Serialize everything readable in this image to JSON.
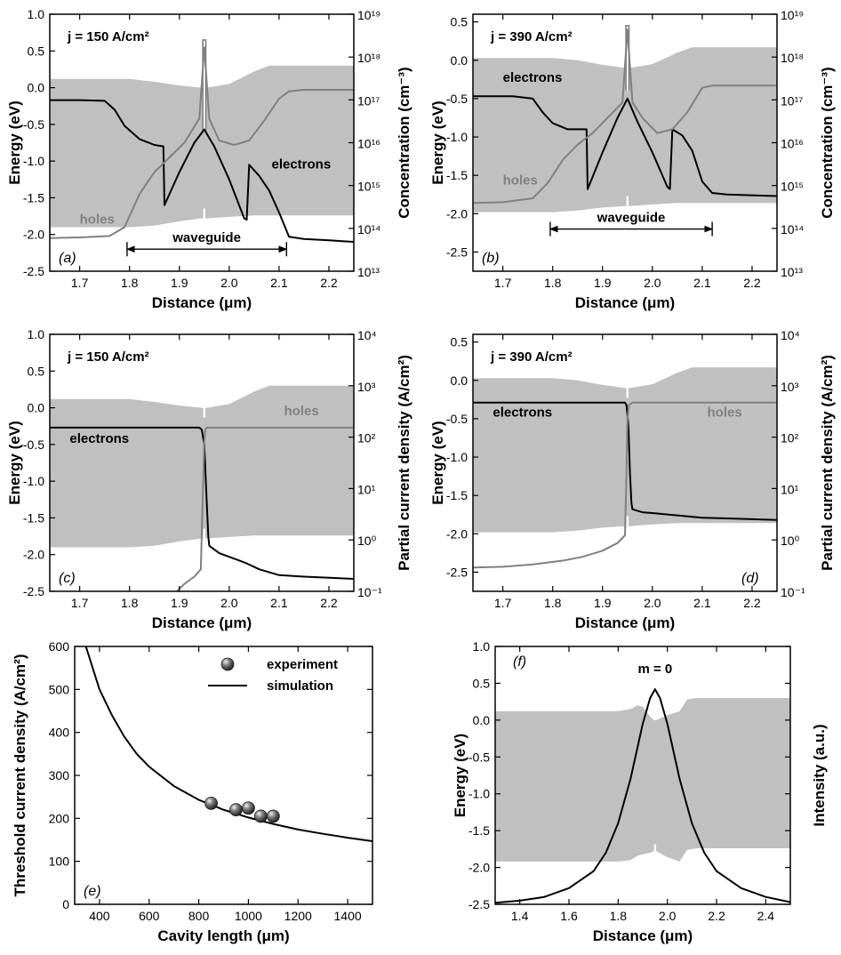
{
  "colors": {
    "band": "#c0c0c0",
    "electrons": "#000000",
    "holes": "#808080",
    "marker": "#5a5a5a"
  },
  "chart_data": [
    {
      "id": "a",
      "type": "line",
      "panel_label": "(a)",
      "annotation": "j = 150 A/cm²",
      "xlabel": "Distance (μm)",
      "ylabel": "Energy (eV)",
      "y2label": "Concentration (cm⁻³)",
      "xlim": [
        1.64,
        2.25
      ],
      "ylim": [
        -2.5,
        1.0
      ],
      "xticks": [
        "1.7",
        "1.8",
        "1.9",
        "2.0",
        "2.1",
        "2.2"
      ],
      "yticks": [
        "-2.5",
        "-2.0",
        "-1.5",
        "-1.0",
        "-0.5",
        "0.0",
        "0.5",
        "1.0"
      ],
      "y2log": true,
      "y2lim": [
        10000000000000.0,
        1e+19
      ],
      "y2ticks": [
        "10¹³",
        "10¹⁴",
        "10¹⁵",
        "10¹⁶",
        "10¹⁷",
        "10¹⁸",
        "10¹⁹"
      ],
      "labels": [
        {
          "text": "electrons",
          "x": 2.085,
          "y": -1.1
        },
        {
          "text": "holes",
          "x": 1.7,
          "y": -1.85,
          "color": "holes"
        }
      ],
      "waveguide": {
        "text": "waveguide",
        "from": 1.795,
        "to": 2.115,
        "y": -2.2
      },
      "band": {
        "x": [
          1.64,
          1.8,
          1.85,
          1.9,
          1.945,
          1.955,
          2.0,
          2.05,
          2.08,
          2.25
        ],
        "upper": [
          0.12,
          0.12,
          0.08,
          0.03,
          0.0,
          0.0,
          0.05,
          0.22,
          0.3,
          0.3
        ],
        "lower": [
          -1.9,
          -1.9,
          -1.88,
          -1.82,
          -1.78,
          -1.78,
          -1.76,
          -1.74,
          -1.74,
          -1.74
        ]
      },
      "barrier": {
        "x": [
          1.947,
          1.953
        ],
        "top": 0.65,
        "bottom": -0.6
      },
      "series": [
        {
          "name": "electrons",
          "color": "electrons",
          "x": [
            1.64,
            1.7,
            1.75,
            1.77,
            1.79,
            1.82,
            1.85,
            1.868,
            1.87,
            1.9,
            1.93,
            1.95,
            1.97,
            2.0,
            2.03,
            2.035,
            2.04,
            2.06,
            2.08,
            2.1,
            2.12,
            2.15,
            2.2,
            2.25
          ],
          "y": [
            -0.17,
            -0.17,
            -0.18,
            -0.3,
            -0.52,
            -0.7,
            -0.78,
            -0.8,
            -1.6,
            -1.15,
            -0.75,
            -0.57,
            -0.8,
            -1.25,
            -1.78,
            -1.8,
            -1.05,
            -1.2,
            -1.4,
            -1.7,
            -2.03,
            -2.06,
            -2.08,
            -2.1
          ]
        },
        {
          "name": "holes",
          "color": "holes",
          "x": [
            1.64,
            1.7,
            1.76,
            1.79,
            1.82,
            1.85,
            1.88,
            1.91,
            1.94,
            1.95,
            1.96,
            1.98,
            2.01,
            2.04,
            2.07,
            2.1,
            2.12,
            2.15,
            2.25
          ],
          "y": [
            -2.05,
            -2.04,
            -2.02,
            -1.9,
            -1.45,
            -1.15,
            -0.95,
            -0.75,
            -0.42,
            0.55,
            -0.42,
            -0.72,
            -0.78,
            -0.72,
            -0.45,
            -0.15,
            -0.05,
            -0.03,
            -0.03
          ]
        }
      ]
    },
    {
      "id": "b",
      "type": "line",
      "panel_label": "(b)",
      "annotation": "j = 390 A/cm²",
      "xlabel": "Distance (μm)",
      "ylabel": "Energy (eV)",
      "y2label": "Concentration (cm⁻³)",
      "xlim": [
        1.64,
        2.25
      ],
      "ylim": [
        -2.75,
        0.6
      ],
      "xticks": [
        "1.7",
        "1.8",
        "1.9",
        "2.0",
        "2.1",
        "2.2"
      ],
      "yticks": [
        "-2.5",
        "-2.0",
        "-1.5",
        "-1.0",
        "-0.5",
        "0.0",
        "0.5"
      ],
      "y2log": true,
      "y2lim": [
        10000000000000.0,
        1e+19
      ],
      "y2ticks": [
        "10¹³",
        "10¹⁴",
        "10¹⁵",
        "10¹⁶",
        "10¹⁷",
        "10¹⁸",
        "10¹⁹"
      ],
      "labels": [
        {
          "text": "electrons",
          "x": 1.7,
          "y": -0.28
        },
        {
          "text": "holes",
          "x": 1.7,
          "y": -1.62,
          "color": "holes"
        }
      ],
      "waveguide": {
        "text": "waveguide",
        "from": 1.795,
        "to": 2.12,
        "y": -2.2
      },
      "band": {
        "x": [
          1.64,
          1.8,
          1.85,
          1.9,
          1.945,
          1.955,
          2.0,
          2.05,
          2.08,
          2.25
        ],
        "upper": [
          0.03,
          0.03,
          0.0,
          -0.06,
          -0.1,
          -0.1,
          -0.05,
          0.1,
          0.17,
          0.17
        ],
        "lower": [
          -1.98,
          -1.98,
          -1.96,
          -1.92,
          -1.9,
          -1.9,
          -1.88,
          -1.86,
          -1.86,
          -1.86
        ]
      },
      "barrier": {
        "x": [
          1.947,
          1.953
        ],
        "top": 0.45,
        "bottom": -0.4
      },
      "series": [
        {
          "name": "electrons",
          "color": "electrons",
          "x": [
            1.64,
            1.72,
            1.76,
            1.78,
            1.8,
            1.83,
            1.868,
            1.87,
            1.9,
            1.93,
            1.95,
            1.97,
            2.0,
            2.03,
            2.035,
            2.04,
            2.06,
            2.08,
            2.1,
            2.12,
            2.15,
            2.2,
            2.25
          ],
          "y": [
            -0.47,
            -0.47,
            -0.5,
            -0.68,
            -0.82,
            -0.9,
            -0.9,
            -1.68,
            -1.2,
            -0.75,
            -0.5,
            -0.8,
            -1.2,
            -1.65,
            -1.68,
            -0.9,
            -0.98,
            -1.18,
            -1.58,
            -1.73,
            -1.75,
            -1.76,
            -1.77
          ]
        },
        {
          "name": "holes",
          "color": "holes",
          "x": [
            1.64,
            1.7,
            1.76,
            1.79,
            1.82,
            1.85,
            1.88,
            1.91,
            1.94,
            1.95,
            1.96,
            1.98,
            2.01,
            2.04,
            2.07,
            2.1,
            2.12,
            2.15,
            2.25
          ],
          "y": [
            -1.86,
            -1.85,
            -1.8,
            -1.6,
            -1.3,
            -1.1,
            -0.95,
            -0.75,
            -0.55,
            0.4,
            -0.55,
            -0.75,
            -0.95,
            -0.9,
            -0.68,
            -0.36,
            -0.33,
            -0.33,
            -0.33
          ]
        }
      ]
    },
    {
      "id": "c",
      "type": "line",
      "panel_label": "(c)",
      "annotation": "j = 150 A/cm²",
      "xlabel": "Distance (μm)",
      "ylabel": "Energy (eV)",
      "y2label": "Partial current density (A/cm²)",
      "xlim": [
        1.64,
        2.25
      ],
      "ylim": [
        -2.5,
        1.0
      ],
      "xticks": [
        "1.7",
        "1.8",
        "1.9",
        "2.0",
        "2.1",
        "2.2"
      ],
      "yticks": [
        "-2.5",
        "-2.0",
        "-1.5",
        "-1.0",
        "-0.5",
        "0.0",
        "0.5",
        "1.0"
      ],
      "y2log": true,
      "y2lim": [
        0.1,
        10000
      ],
      "y2ticks": [
        "10⁻¹",
        "10⁰",
        "10¹",
        "10²",
        "10³",
        "10⁴"
      ],
      "labels": [
        {
          "text": "electrons",
          "x": 1.68,
          "y": -0.48
        },
        {
          "text": "holes",
          "x": 2.11,
          "y": -0.1,
          "color": "holes"
        }
      ],
      "band": {
        "x": [
          1.64,
          1.8,
          1.85,
          1.9,
          1.945,
          1.955,
          2.0,
          2.05,
          2.08,
          2.25
        ],
        "upper": [
          0.12,
          0.12,
          0.08,
          0.03,
          0.0,
          0.0,
          0.05,
          0.22,
          0.3,
          0.3
        ],
        "lower": [
          -1.9,
          -1.9,
          -1.88,
          -1.82,
          -1.78,
          -1.78,
          -1.76,
          -1.74,
          -1.74,
          -1.74
        ]
      },
      "series": [
        {
          "name": "electrons",
          "color": "electrons",
          "x": [
            1.64,
            1.94,
            1.945,
            1.95,
            1.955,
            1.958,
            1.96,
            1.98,
            2.02,
            2.035,
            2.06,
            2.1,
            2.15,
            2.25
          ],
          "y": [
            -0.27,
            -0.27,
            -0.3,
            -0.5,
            -1.3,
            -1.75,
            -1.88,
            -1.98,
            -2.08,
            -2.12,
            -2.2,
            -2.28,
            -2.3,
            -2.33
          ]
        },
        {
          "name": "holes",
          "color": "holes",
          "x": [
            1.895,
            1.91,
            1.93,
            1.943,
            1.947,
            1.95,
            1.952,
            1.955,
            1.96,
            2.0,
            2.25
          ],
          "y": [
            -2.5,
            -2.4,
            -2.3,
            -2.2,
            -1.2,
            -0.45,
            -0.3,
            -0.27,
            -0.27,
            -0.27,
            -0.27
          ]
        }
      ]
    },
    {
      "id": "d",
      "type": "line",
      "panel_label": "(d)",
      "annotation": "j = 390 A/cm²",
      "xlabel": "Distance (μm)",
      "ylabel": "Energy (eV)",
      "y2label": "Partial current density (A/cm²)",
      "xlim": [
        1.64,
        2.25
      ],
      "ylim": [
        -2.75,
        0.6
      ],
      "xticks": [
        "1.7",
        "1.8",
        "1.9",
        "2.0",
        "2.1",
        "2.2"
      ],
      "yticks": [
        "-2.5",
        "-2.0",
        "-1.5",
        "-1.0",
        "-0.5",
        "0.0",
        "0.5"
      ],
      "y2log": true,
      "y2lim": [
        0.1,
        10000
      ],
      "y2ticks": [
        "10⁻¹",
        "10⁰",
        "10¹",
        "10²",
        "10³",
        "10⁴"
      ],
      "labels": [
        {
          "text": "electrons",
          "x": 1.68,
          "y": -0.47
        },
        {
          "text": "holes",
          "x": 2.11,
          "y": -0.47,
          "color": "holes"
        }
      ],
      "band": {
        "x": [
          1.64,
          1.8,
          1.85,
          1.9,
          1.945,
          1.955,
          2.0,
          2.05,
          2.08,
          2.25
        ],
        "upper": [
          0.03,
          0.03,
          0.0,
          -0.06,
          -0.1,
          -0.1,
          -0.05,
          0.1,
          0.17,
          0.17
        ],
        "lower": [
          -1.98,
          -1.98,
          -1.96,
          -1.92,
          -1.9,
          -1.9,
          -1.88,
          -1.86,
          -1.86,
          -1.86
        ]
      },
      "series": [
        {
          "name": "electrons",
          "color": "electrons",
          "x": [
            1.64,
            1.945,
            1.948,
            1.952,
            1.955,
            1.958,
            1.96,
            1.98,
            2.0,
            2.05,
            2.1,
            2.15,
            2.25
          ],
          "y": [
            -0.29,
            -0.29,
            -0.32,
            -0.6,
            -1.2,
            -1.6,
            -1.68,
            -1.72,
            -1.73,
            -1.76,
            -1.79,
            -1.8,
            -1.82
          ]
        },
        {
          "name": "holes",
          "color": "holes",
          "x": [
            1.64,
            1.7,
            1.76,
            1.82,
            1.86,
            1.9,
            1.93,
            1.945,
            1.948,
            1.95,
            1.953,
            1.96,
            2.0,
            2.25
          ],
          "y": [
            -2.44,
            -2.43,
            -2.4,
            -2.35,
            -2.3,
            -2.22,
            -2.12,
            -2.02,
            -1.2,
            -0.5,
            -0.32,
            -0.29,
            -0.29,
            -0.29
          ]
        }
      ]
    },
    {
      "id": "e",
      "type": "scatter",
      "panel_label": "(e)",
      "xlabel": "Cavity length (μm)",
      "ylabel": "Threshold current density (A/cm²)",
      "xlim": [
        300,
        1500
      ],
      "ylim": [
        0,
        600
      ],
      "xticks": [
        "400",
        "600",
        "800",
        "1000",
        "1200",
        "1400"
      ],
      "yticks": [
        "0",
        "100",
        "200",
        "300",
        "400",
        "500",
        "600"
      ],
      "legend": {
        "placement": "top-right",
        "entries": [
          "experiment",
          "simulation"
        ]
      },
      "experiment": {
        "x": [
          850,
          950,
          1000,
          1050,
          1100
        ],
        "y": [
          235,
          220,
          224,
          205,
          205
        ]
      },
      "simulation": {
        "x": [
          345,
          400,
          450,
          500,
          550,
          600,
          700,
          800,
          900,
          1000,
          1100,
          1200,
          1300,
          1400,
          1500
        ],
        "y": [
          600,
          500,
          440,
          390,
          350,
          320,
          275,
          243,
          220,
          202,
          187,
          174,
          164,
          155,
          147
        ]
      }
    },
    {
      "id": "f",
      "type": "line",
      "panel_label": "(f)",
      "annotation": "m = 0",
      "xlabel": "Distance (μm)",
      "ylabel": "Energy (eV)",
      "y2label": "Intensity (a.u.)",
      "xlim": [
        1.3,
        2.5
      ],
      "ylim": [
        -2.5,
        1.0
      ],
      "xticks": [
        "1.4",
        "1.6",
        "1.8",
        "2.0",
        "2.2",
        "2.4"
      ],
      "yticks": [
        "-2.5",
        "-2.0",
        "-1.5",
        "-1.0",
        "-0.5",
        "0.0",
        "0.5",
        "1.0"
      ],
      "band": {
        "x": [
          1.3,
          1.8,
          1.85,
          1.88,
          1.9,
          1.93,
          1.945,
          1.955,
          2.0,
          2.05,
          2.08,
          2.12,
          2.5
        ],
        "upper": [
          0.12,
          0.12,
          0.15,
          0.2,
          0.18,
          0.05,
          0.0,
          0.0,
          0.07,
          0.12,
          0.28,
          0.3,
          0.3
        ],
        "lower": [
          -1.92,
          -1.92,
          -1.9,
          -1.84,
          -1.82,
          -1.8,
          -1.78,
          -1.78,
          -1.86,
          -1.92,
          -1.76,
          -1.74,
          -1.74
        ]
      },
      "series": [
        {
          "name": "intensity",
          "color": "electrons",
          "x": [
            1.3,
            1.4,
            1.5,
            1.6,
            1.7,
            1.75,
            1.8,
            1.85,
            1.9,
            1.93,
            1.95,
            1.97,
            2.0,
            2.05,
            2.1,
            2.15,
            2.2,
            2.3,
            2.4,
            2.5
          ],
          "y": [
            -2.48,
            -2.45,
            -2.4,
            -2.28,
            -2.05,
            -1.8,
            -1.4,
            -0.8,
            -0.05,
            0.3,
            0.42,
            0.3,
            -0.05,
            -0.8,
            -1.4,
            -1.8,
            -2.05,
            -2.28,
            -2.4,
            -2.47
          ]
        }
      ]
    }
  ]
}
